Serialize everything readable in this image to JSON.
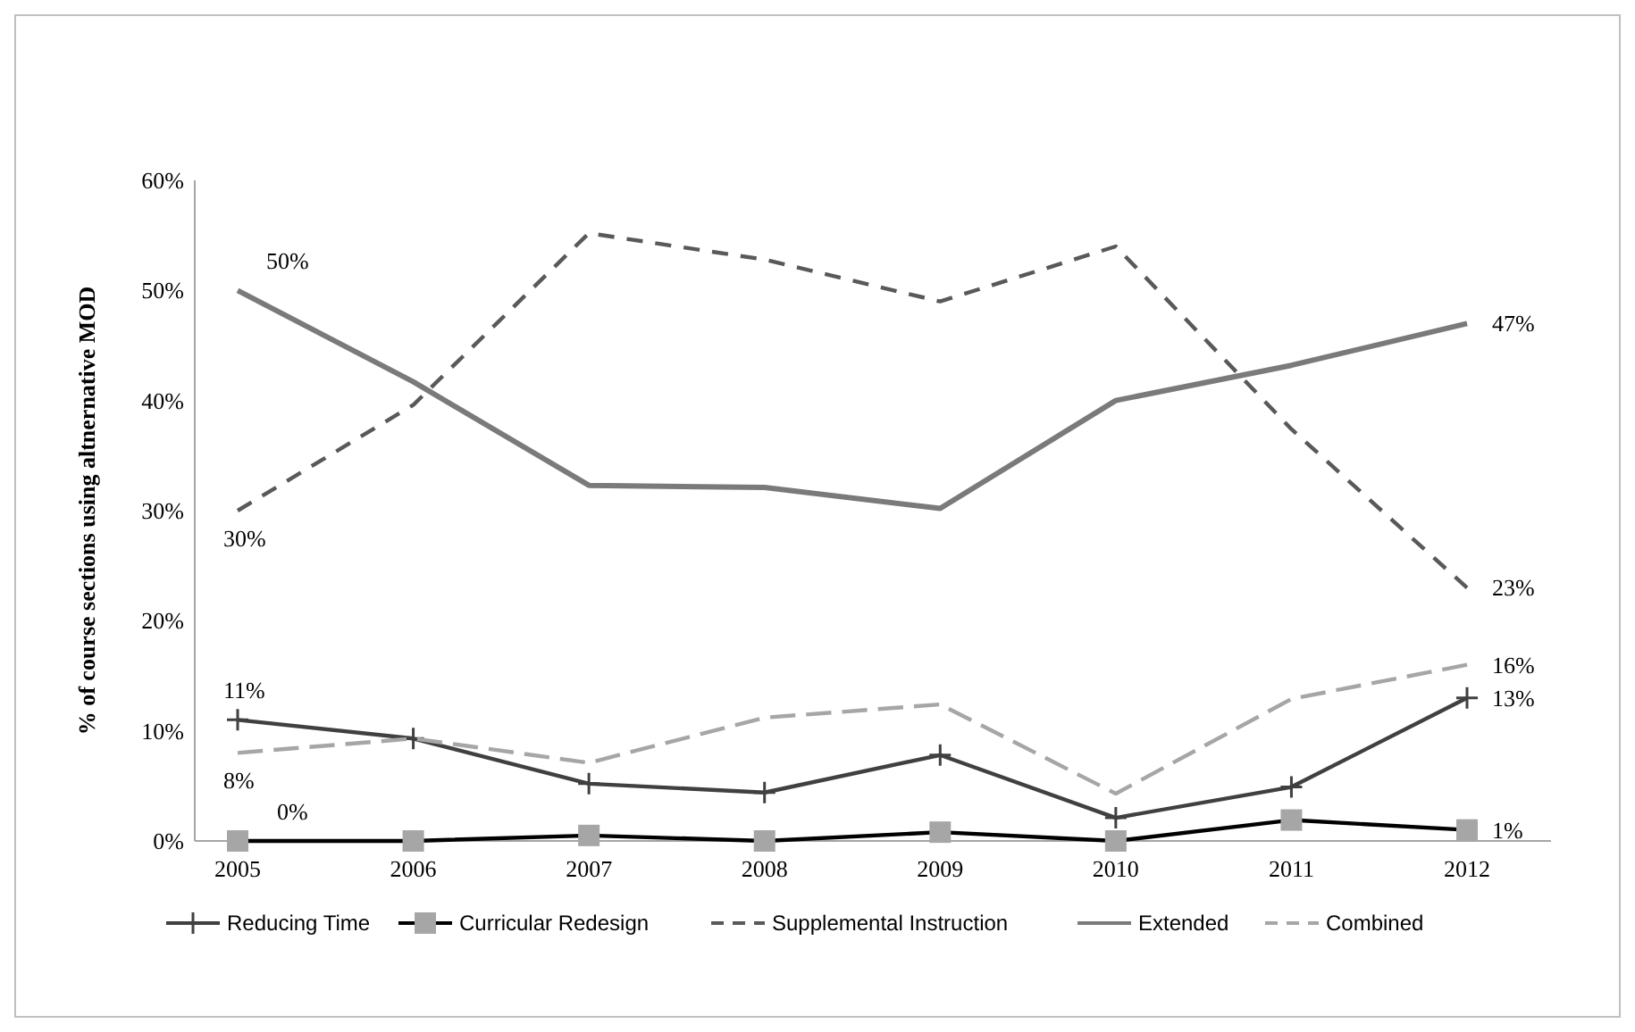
{
  "chart_data": {
    "type": "line",
    "ylabel": "% of course sections using altnernative MOD",
    "categories": [
      "2005",
      "2006",
      "2007",
      "2008",
      "2009",
      "2010",
      "2011",
      "2012"
    ],
    "ylim": [
      0,
      60
    ],
    "yticks": [
      {
        "value": 0,
        "label": "0%"
      },
      {
        "value": 10,
        "label": "10%"
      },
      {
        "value": 20,
        "label": "20%"
      },
      {
        "value": 30,
        "label": "30%"
      },
      {
        "value": 40,
        "label": "40%"
      },
      {
        "value": 50,
        "label": "50%"
      },
      {
        "value": 60,
        "label": "60%"
      }
    ],
    "grid": false,
    "legend": "bottom",
    "series": [
      {
        "name": "Reducing Time",
        "color": "#404040",
        "marker": "cross",
        "line_style": "solid",
        "values": [
          11,
          9.3,
          5.2,
          4.4,
          7.8,
          2.1,
          4.9,
          13
        ],
        "value_labels": [
          "11%",
          null,
          null,
          null,
          null,
          null,
          null,
          "13%"
        ]
      },
      {
        "name": "Curricular Redesign",
        "color": "#000000",
        "marker": "square",
        "line_style": "solid",
        "values": [
          0,
          0,
          0.5,
          0,
          0.8,
          0,
          1.9,
          1
        ],
        "value_labels": [
          "0%",
          null,
          null,
          null,
          null,
          null,
          null,
          "1%"
        ]
      },
      {
        "name": "Supplemental Instruction",
        "color": "#595959",
        "marker": "none",
        "line_style": "dashed",
        "values": [
          30,
          39.6,
          55.2,
          52.8,
          49,
          54,
          37.4,
          23
        ],
        "value_labels": [
          "30%",
          null,
          null,
          null,
          null,
          null,
          null,
          "23%"
        ]
      },
      {
        "name": "Extended",
        "color": "#7a7a7a",
        "marker": "none",
        "line_style": "solid",
        "values": [
          50,
          41.7,
          32.3,
          32.1,
          30.2,
          40,
          43.2,
          47
        ],
        "value_labels": [
          "50%",
          null,
          null,
          null,
          null,
          null,
          null,
          "47%"
        ]
      },
      {
        "name": "Combined",
        "color": "#a6a6a6",
        "marker": "none",
        "line_style": "dashed",
        "values": [
          8,
          9.3,
          7.1,
          11.2,
          12.4,
          4.3,
          12.9,
          16
        ],
        "value_labels": [
          "8%",
          null,
          null,
          null,
          null,
          null,
          null,
          "16%"
        ]
      }
    ]
  }
}
